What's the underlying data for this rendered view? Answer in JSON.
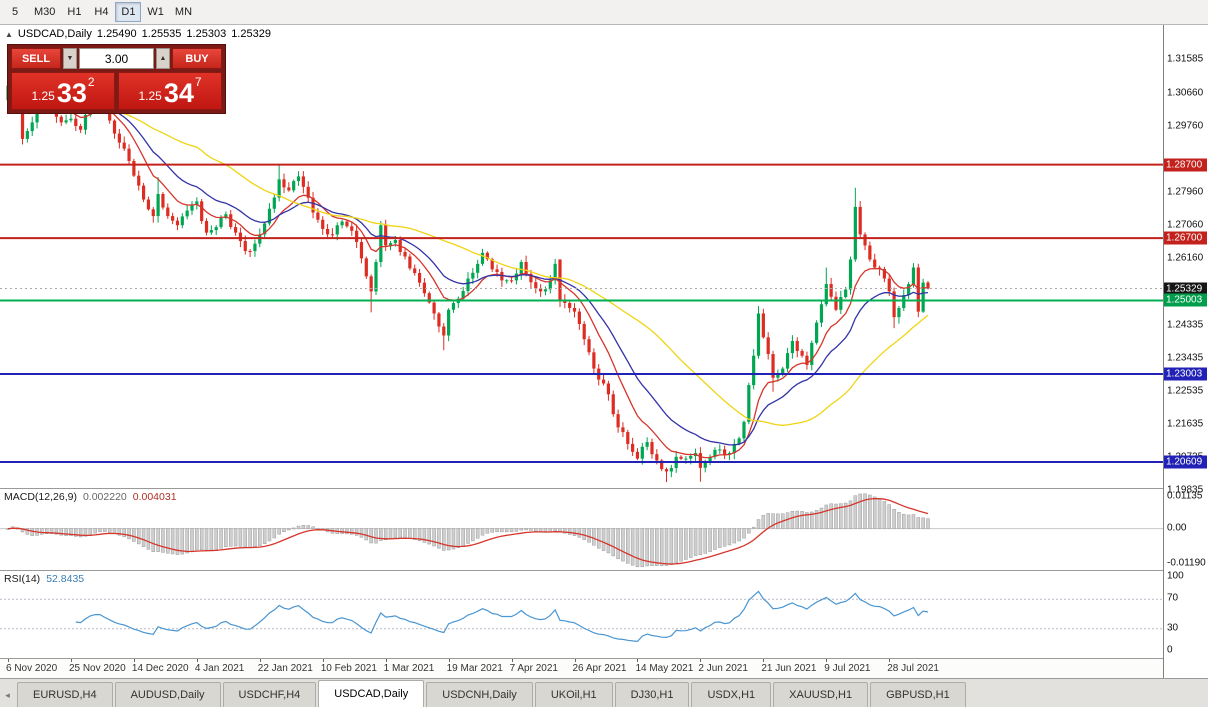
{
  "toolbar": {
    "periods": [
      "5",
      "M30",
      "H1",
      "H4",
      "D1",
      "W1",
      "MN"
    ],
    "active": "D1"
  },
  "quote_header": {
    "collapse_icon": "▲",
    "symbol": "USDCAD,Daily",
    "open": "1.25490",
    "high": "1.25535",
    "low": "1.25303",
    "close": "1.25329"
  },
  "trade_panel": {
    "sell_label": "SELL",
    "buy_label": "BUY",
    "volume": "3.00",
    "spinner_down": "▼",
    "spinner_up": "▲",
    "sell_price": {
      "prefix": "1.25",
      "big": "33",
      "sup": "2"
    },
    "buy_price": {
      "prefix": "1.25",
      "big": "34",
      "sup": "7"
    }
  },
  "price_axis": {
    "ticks": [
      "1.31585",
      "1.30660",
      "1.29760",
      "1.27960",
      "1.27060",
      "1.26160",
      "1.24335",
      "1.23435",
      "1.22535",
      "1.21635",
      "1.20735",
      "1.19835"
    ],
    "badges": [
      {
        "label": "1.28700",
        "price": 1.287,
        "color": "#c3221c"
      },
      {
        "label": "1.26700",
        "price": 1.267,
        "color": "#c3221c"
      },
      {
        "label": "1.25329",
        "price": 1.25329,
        "color": "#151515"
      },
      {
        "label": "1.25003",
        "price": 1.25003,
        "color": "#009e4c"
      },
      {
        "label": "1.23003",
        "price": 1.23003,
        "color": "#2121b5"
      },
      {
        "label": "1.20609",
        "price": 1.20609,
        "color": "#2121b5"
      }
    ]
  },
  "hlines": [
    {
      "price": 1.287,
      "color": "#c3221c",
      "w": 2
    },
    {
      "price": 1.267,
      "color": "#c3221c",
      "w": 2
    },
    {
      "price": 1.25003,
      "color": "#00b050",
      "w": 2
    },
    {
      "price": 1.23003,
      "color": "#2121b5",
      "w": 2
    },
    {
      "price": 1.20609,
      "color": "#2121b5",
      "w": 2
    }
  ],
  "bid_line": {
    "price": 1.25329,
    "color": "#aaaaaa"
  },
  "macd_panel": {
    "label": "MACD(12,26,9)",
    "value_main": "0.002220",
    "value_signal": "0.004031",
    "axis_top": "0.01135",
    "axis_zero": "0.00",
    "axis_bottom": "-0.01190"
  },
  "rsi_panel": {
    "label": "RSI(14)",
    "value": "52.8435",
    "axis": [
      "100",
      "70",
      "30",
      "0"
    ],
    "levels": [
      70,
      30
    ]
  },
  "date_axis": {
    "bars_per_label": 13,
    "labels": [
      "6 Nov 2020",
      "25 Nov 2020",
      "14 Dec 2020",
      "4 Jan 2021",
      "22 Jan 2021",
      "10 Feb 2021",
      "1 Mar 2021",
      "19 Mar 2021",
      "7 Apr 2021",
      "26 Apr 2021",
      "14 May 2021",
      "2 Jun 2021",
      "21 Jun 2021",
      "9 Jul 2021",
      "28 Jul 2021"
    ]
  },
  "tabs": {
    "scroll_left_icon": "◂",
    "items": [
      "EURUSD,H4",
      "AUDUSD,Daily",
      "USDCHF,H4",
      "USDCAD,Daily",
      "USDCNH,Daily",
      "UKOil,H1",
      "DJ30,H1",
      "USDX,H1",
      "XAUUSD,H1",
      "GBPUSD,H1"
    ],
    "active": "USDCAD,Daily"
  },
  "chart_data": {
    "type": "candlestick",
    "symbol": "USDCAD",
    "timeframe": "Daily",
    "bars": 191,
    "price_min": 1.199,
    "price_max": 1.325,
    "close_waypoints": [
      [
        0,
        1.3085
      ],
      [
        1,
        1.3155
      ],
      [
        3,
        1.294
      ],
      [
        5,
        1.2985
      ],
      [
        7,
        1.306
      ],
      [
        9,
        1.303
      ],
      [
        11,
        1.2985
      ],
      [
        13,
        1.2995
      ],
      [
        15,
        1.2965
      ],
      [
        17,
        1.304
      ],
      [
        19,
        1.3055
      ],
      [
        21,
        1.299
      ],
      [
        23,
        1.293
      ],
      [
        25,
        1.288
      ],
      [
        26,
        1.284
      ],
      [
        28,
        1.2775
      ],
      [
        30,
        1.273
      ],
      [
        31,
        1.279
      ],
      [
        33,
        1.273
      ],
      [
        35,
        1.2705
      ],
      [
        37,
        1.2745
      ],
      [
        39,
        1.277
      ],
      [
        41,
        1.2685
      ],
      [
        43,
        1.27
      ],
      [
        45,
        1.2735
      ],
      [
        47,
        1.2685
      ],
      [
        49,
        1.2635
      ],
      [
        51,
        1.2655
      ],
      [
        52,
        1.268
      ],
      [
        54,
        1.275
      ],
      [
        56,
        1.283
      ],
      [
        58,
        1.28
      ],
      [
        60,
        1.2838
      ],
      [
        62,
        1.278
      ],
      [
        64,
        1.272
      ],
      [
        65,
        1.2695
      ],
      [
        67,
        1.268
      ],
      [
        69,
        1.2715
      ],
      [
        71,
        1.269
      ],
      [
        73,
        1.2615
      ],
      [
        75,
        1.2525
      ],
      [
        76,
        1.2605
      ],
      [
        77,
        1.2705
      ],
      [
        78,
        1.265
      ],
      [
        80,
        1.2665
      ],
      [
        82,
        1.262
      ],
      [
        84,
        1.2575
      ],
      [
        86,
        1.252
      ],
      [
        88,
        1.2465
      ],
      [
        90,
        1.2405
      ],
      [
        91,
        1.2475
      ],
      [
        93,
        1.2505
      ],
      [
        95,
        1.256
      ],
      [
        97,
        1.26
      ],
      [
        98,
        1.263
      ],
      [
        100,
        1.2585
      ],
      [
        102,
        1.2555
      ],
      [
        104,
        1.2555
      ],
      [
        106,
        1.2605
      ],
      [
        108,
        1.255
      ],
      [
        110,
        1.2525
      ],
      [
        112,
        1.2555
      ],
      [
        113,
        1.26
      ],
      [
        114,
        1.25
      ],
      [
        116,
        1.248
      ],
      [
        117,
        1.247
      ],
      [
        119,
        1.2395
      ],
      [
        121,
        1.2315
      ],
      [
        122,
        1.2285
      ],
      [
        124,
        1.2245
      ],
      [
        126,
        1.2155
      ],
      [
        128,
        1.211
      ],
      [
        130,
        1.207
      ],
      [
        132,
        1.2115
      ],
      [
        134,
        1.2065
      ],
      [
        136,
        1.2035
      ],
      [
        138,
        1.2075
      ],
      [
        140,
        1.207
      ],
      [
        142,
        1.2085
      ],
      [
        143,
        1.2045
      ],
      [
        145,
        1.2075
      ],
      [
        147,
        1.2095
      ],
      [
        149,
        1.2085
      ],
      [
        151,
        1.2125
      ],
      [
        152,
        1.217
      ],
      [
        153,
        1.227
      ],
      [
        154,
        1.235
      ],
      [
        155,
        1.2465
      ],
      [
        156,
        1.24
      ],
      [
        158,
        1.229
      ],
      [
        160,
        1.2315
      ],
      [
        162,
        1.239
      ],
      [
        164,
        1.235
      ],
      [
        165,
        1.2325
      ],
      [
        166,
        1.2385
      ],
      [
        167,
        1.244
      ],
      [
        168,
        1.249
      ],
      [
        169,
        1.2545
      ],
      [
        171,
        1.2475
      ],
      [
        173,
        1.253
      ],
      [
        174,
        1.2612
      ],
      [
        175,
        1.2755
      ],
      [
        176,
        1.268
      ],
      [
        177,
        1.265
      ],
      [
        179,
        1.259
      ],
      [
        181,
        1.256
      ],
      [
        182,
        1.2525
      ],
      [
        183,
        1.2455
      ],
      [
        184,
        1.248
      ],
      [
        185,
        1.2515
      ],
      [
        186,
        1.2545
      ],
      [
        187,
        1.259
      ],
      [
        188,
        1.247
      ],
      [
        189,
        1.2549
      ],
      [
        190,
        1.25329
      ]
    ],
    "overrides": {
      "1": {
        "h": 1.3165
      },
      "3": {
        "l": 1.2925
      },
      "31": {
        "h": 1.2836
      },
      "56": {
        "h": 1.2872
      },
      "60": {
        "h": 1.2852
      },
      "75": {
        "l": 1.2468
      },
      "90": {
        "l": 1.2365
      },
      "114": {
        "o": 1.2612
      },
      "136": {
        "l": 1.2006
      },
      "143": {
        "l": 1.2007
      },
      "155": {
        "h": 1.2485
      },
      "158": {
        "l": 1.2252
      },
      "169": {
        "h": 1.259
      },
      "175": {
        "h": 1.2807
      },
      "183": {
        "l": 1.2425
      },
      "187": {
        "h": 1.2602
      },
      "188": {
        "l": 1.2455
      },
      "190": {
        "o": 1.2549,
        "h": 1.25535,
        "l": 1.25303,
        "c": 1.25329
      }
    },
    "moving_averages": [
      {
        "period": 10,
        "type": "ema",
        "color": "#d6352b"
      },
      {
        "period": 20,
        "type": "ema",
        "color": "#3333a8"
      },
      {
        "period": 40,
        "type": "sma",
        "color": "#efd414"
      }
    ],
    "macd_scale": {
      "top": 0.01135,
      "bottom": -0.0119
    },
    "colors": {
      "bull": "#00a651",
      "bear": "#dd2c22",
      "macd_hist_fill": "#cfcfcf",
      "macd_hist_stroke": "#9c9c9c",
      "macd_signal": "#d6352b",
      "rsi_line": "#4a96d2"
    }
  }
}
